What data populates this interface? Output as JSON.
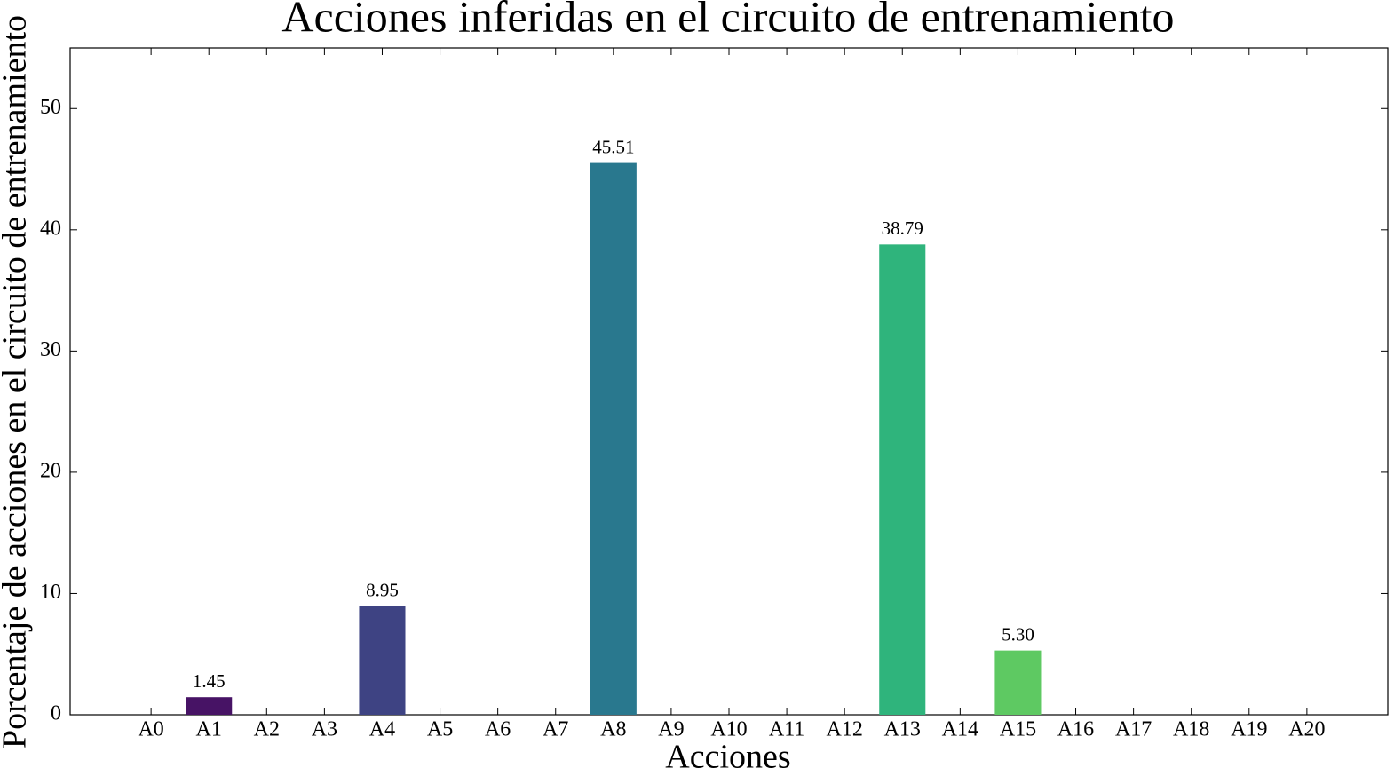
{
  "chart_data": {
    "type": "bar",
    "title": "Acciones inferidas en el circuito de entrenamiento",
    "x_label": "Acciones",
    "y_label": "Porcentaje de acciones en el circuito de entrenamiento",
    "categories": [
      "A0",
      "A1",
      "A2",
      "A3",
      "A4",
      "A5",
      "A6",
      "A7",
      "A8",
      "A9",
      "A10",
      "A11",
      "A12",
      "A13",
      "A14",
      "A15",
      "A16",
      "A17",
      "A18",
      "A19",
      "A20"
    ],
    "values": [
      0,
      1.45,
      0,
      0,
      8.95,
      0,
      0,
      0,
      45.51,
      0,
      0,
      0,
      0,
      38.79,
      0,
      5.3,
      0,
      0,
      0,
      0,
      0
    ],
    "value_labels": [
      null,
      "1.45",
      null,
      null,
      "8.95",
      null,
      null,
      null,
      "45.51",
      null,
      null,
      null,
      null,
      "38.79",
      null,
      "5.30",
      null,
      null,
      null,
      null,
      null
    ],
    "colors": [
      null,
      "#471365",
      null,
      null,
      "#3e4383",
      null,
      null,
      null,
      "#29788e",
      null,
      null,
      null,
      null,
      "#2fb47c",
      null,
      "#5ec962",
      null,
      null,
      null,
      null,
      null
    ],
    "ylim": [
      0,
      55
    ],
    "yticks": [
      0,
      10,
      20,
      30,
      40,
      50
    ]
  }
}
